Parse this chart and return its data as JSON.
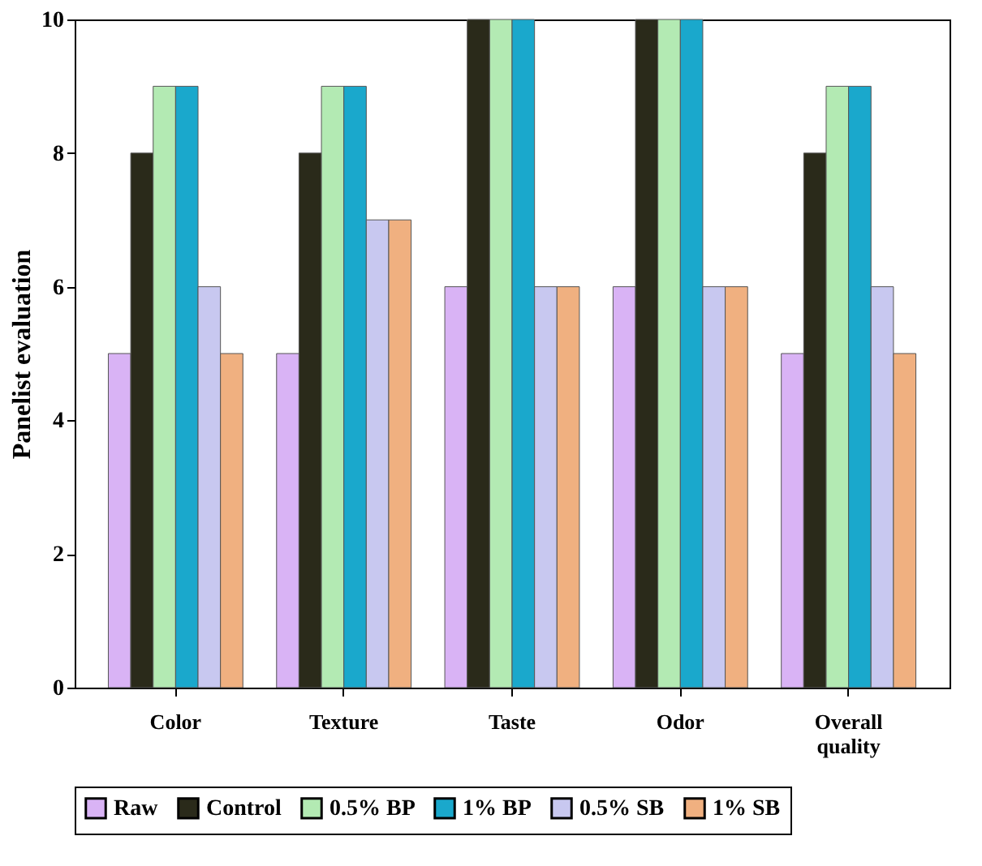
{
  "chart_data": {
    "type": "bar",
    "ylabel": "Panelist evaluation",
    "categories": [
      "Color",
      "Texture",
      "Taste",
      "Odor",
      "Overall quality"
    ],
    "series": [
      {
        "name": "Raw",
        "color": "#d9b3f5",
        "values": [
          5,
          5,
          6,
          6,
          5
        ]
      },
      {
        "name": "Control",
        "color": "#2a2a1a",
        "values": [
          8,
          8,
          10,
          10,
          8
        ]
      },
      {
        "name": "0.5% BP",
        "color": "#b3eab3",
        "values": [
          9,
          9,
          10,
          10,
          9
        ]
      },
      {
        "name": "1% BP",
        "color": "#1aa8cc",
        "values": [
          9,
          9,
          10,
          10,
          9
        ]
      },
      {
        "name": "0.5% SB",
        "color": "#c8c8f0",
        "values": [
          6,
          7,
          6,
          6,
          6
        ]
      },
      {
        "name": "1% SB",
        "color": "#f0b080",
        "values": [
          5,
          7,
          6,
          6,
          5
        ]
      }
    ],
    "ylim": [
      0,
      10
    ],
    "yticks": [
      0,
      2,
      4,
      6,
      8,
      10
    ],
    "grid": false,
    "legend": "bottom"
  }
}
